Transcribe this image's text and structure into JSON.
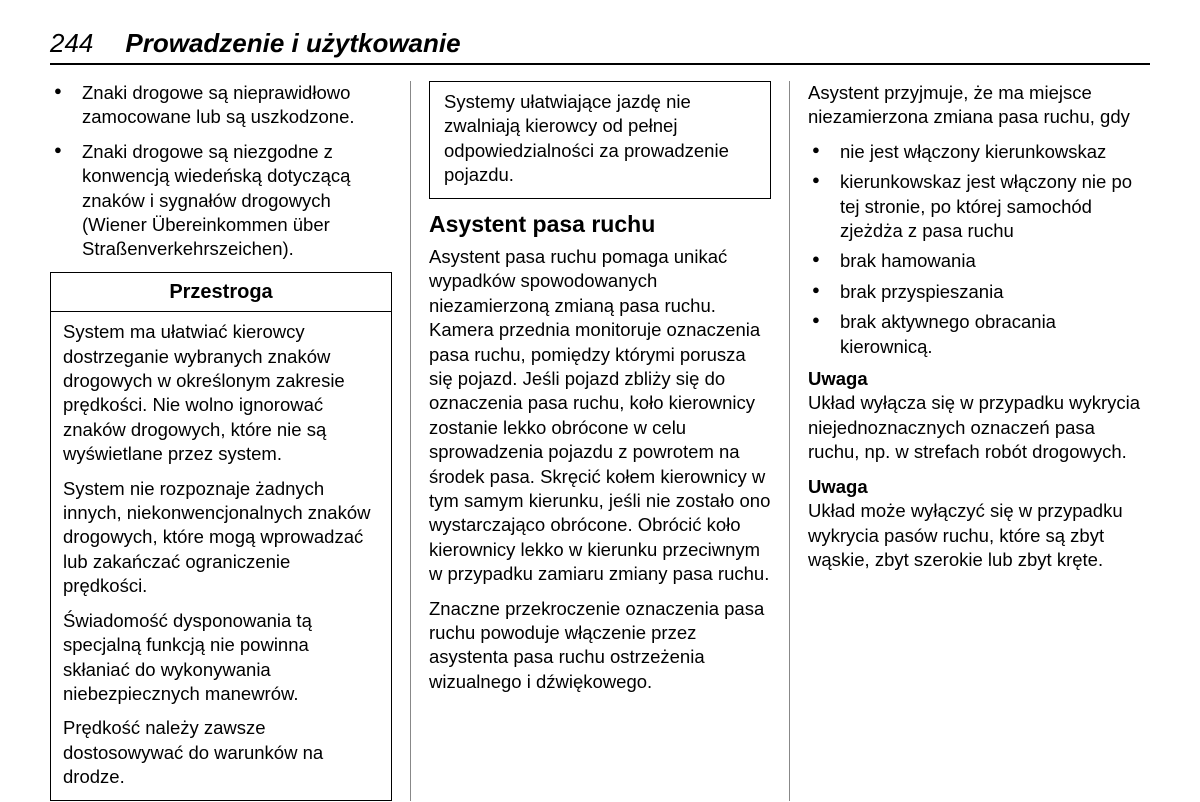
{
  "header": {
    "page_number": "244",
    "chapter": "Prowadzenie i użytkowanie"
  },
  "col1": {
    "bullets": [
      "Znaki drogowe są nieprawidłowo zamocowane lub są uszkodzone.",
      "Znaki drogowe są niezgodne z konwencją wiedeńską dotyczącą znaków i sygnałów drogowych (Wiener Übereinkommen über Straßenverkehrszeichen)."
    ],
    "caution": {
      "title": "Przestroga",
      "paragraphs": [
        "System ma ułatwiać kierowcy dostrzeganie wybranych znaków drogowych w określonym zakresie prędkości. Nie wolno ignorować znaków drogowych, które nie są wyświetlane przez system.",
        "System nie rozpoznaje żadnych innych, niekonwencjonalnych znaków drogowych, które mogą wprowadzać lub zakańczać ograniczenie prędkości.",
        "Świadomość dysponowania tą specjalną funkcją nie powinna skłaniać do wykonywania niebezpiecznych manewrów.",
        "Prędkość należy zawsze dostosowywać do warunków na drodze."
      ]
    }
  },
  "col2": {
    "topbox": "Systemy ułatwiające jazdę nie zwalniają kierowcy od pełnej odpowiedzialności za prowadzenie pojazdu.",
    "heading": "Asystent pasa ruchu",
    "para1": "Asystent pasa ruchu pomaga unikać wypadków spowodowanych niezamierzoną zmianą pasa ruchu. Kamera przednia monitoruje oznaczenia pasa ruchu, pomiędzy którymi porusza się pojazd. Jeśli pojazd zbliży się do oznaczenia pasa ruchu, koło kierownicy zostanie lekko obrócone w celu sprowadzenia pojazdu z powrotem na środek pasa. Skręcić kołem kierownicy w tym samym kierunku, jeśli nie zostało ono wystarczająco obrócone. Obrócić koło kierownicy lekko w kierunku przeciwnym w przypadku zamiaru zmiany pasa ruchu.",
    "para2": "Znaczne przekroczenie oznaczenia pasa ruchu powoduje włączenie przez asystenta pasa ruchu ostrzeżenia wizualnego i dźwiękowego."
  },
  "col3": {
    "intro": "Asystent przyjmuje, że ma miejsce niezamierzona zmiana pasa ruchu, gdy",
    "bullets": [
      "nie jest włączony kierunkowskaz",
      "kierunkowskaz jest włączony nie po tej stronie, po której samochód zjeżdża z pasa ruchu",
      "brak hamowania",
      "brak przyspieszania",
      "brak aktywnego obracania kierownicą."
    ],
    "note1_label": "Uwaga",
    "note1_text": "Układ wyłącza się w przypadku wykrycia niejednoznacznych oznaczeń pasa ruchu, np. w strefach robót drogowych.",
    "note2_label": "Uwaga",
    "note2_text": "Układ może wyłączyć się w przypadku wykrycia pasów ruchu, które są zbyt wąskie, zbyt szerokie lub zbyt kręte."
  }
}
